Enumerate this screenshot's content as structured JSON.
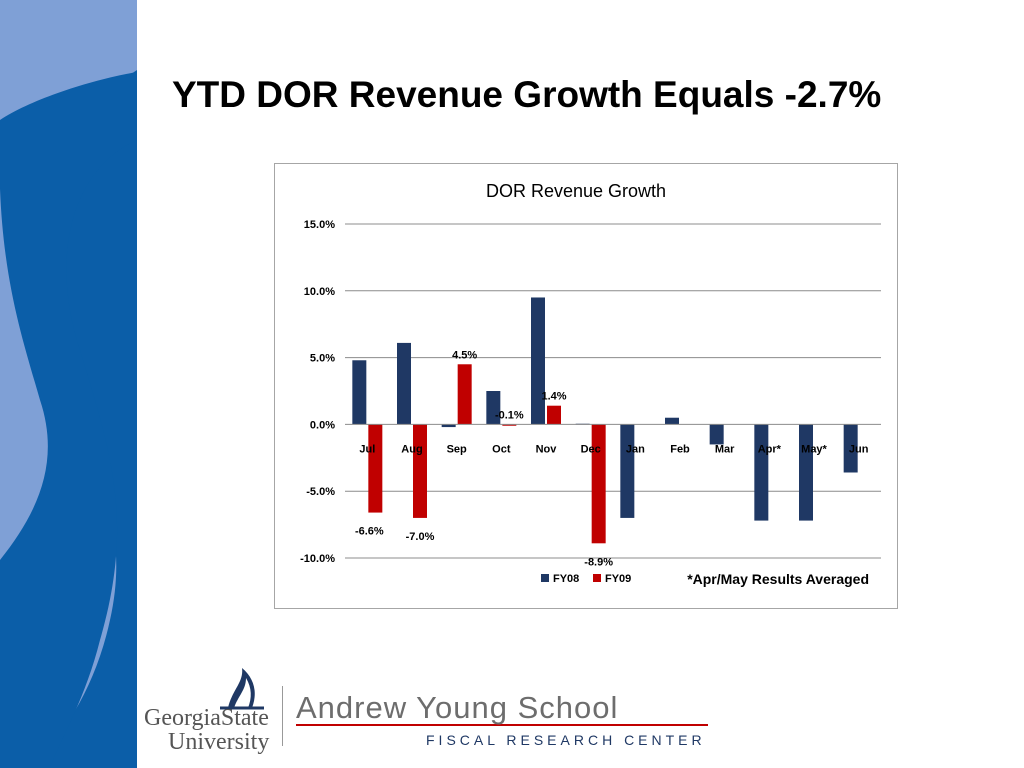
{
  "slide": {
    "title": "YTD DOR Revenue Growth Equals -2.7%"
  },
  "colors": {
    "fy08": "#1f3864",
    "fy09": "#c00000",
    "deco_dark": "#0b5ea8",
    "deco_light": "#7fa0d6"
  },
  "chart_data": {
    "type": "bar",
    "title": "DOR Revenue Growth",
    "categories": [
      "Jul",
      "Aug",
      "Sep",
      "Oct",
      "Nov",
      "Dec",
      "Jan",
      "Feb",
      "Mar",
      "Apr*",
      "May*",
      "Jun"
    ],
    "series": [
      {
        "name": "FY08",
        "values": [
          4.8,
          6.1,
          -0.2,
          2.5,
          9.5,
          0.05,
          -7.0,
          0.5,
          -1.5,
          -7.2,
          -7.2,
          -3.6
        ]
      },
      {
        "name": "FY09",
        "values": [
          -6.6,
          -7.0,
          4.5,
          -0.1,
          1.4,
          -8.9,
          null,
          null,
          null,
          null,
          null,
          null
        ]
      }
    ],
    "data_labels": [
      "-6.6%",
      "-7.0%",
      "4.5%",
      "-0.1%",
      "1.4%",
      "-8.9%"
    ],
    "y_ticks": [
      "15.0%",
      "10.0%",
      "5.0%",
      "0.0%",
      "-5.0%",
      "-10.0%"
    ],
    "ylim": [
      -10,
      15
    ],
    "grid": true,
    "legend_position": "bottom",
    "note": "*Apr/May Results Averaged"
  },
  "footer": {
    "gsu_line1": "GeorgiaState",
    "gsu_line2": "University",
    "school": "Andrew Young School",
    "center": "FISCAL RESEARCH CENTER"
  }
}
